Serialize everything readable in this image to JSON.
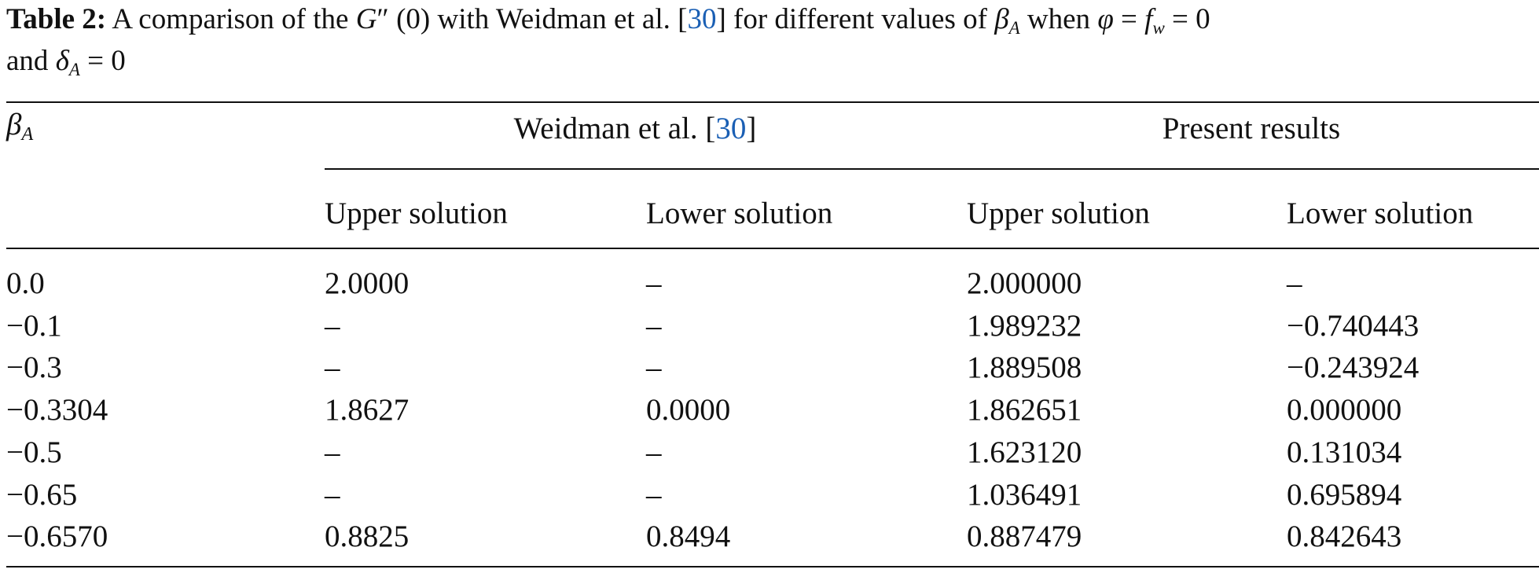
{
  "caption": {
    "label": "Table 2:",
    "parts": [
      "A comparison of the ",
      "G",
      "″",
      " (0) with Weidman et al. [",
      "30",
      "] for different values of ",
      "β",
      "A",
      " when ",
      "φ",
      " = ",
      "f",
      "w",
      " = 0",
      "and ",
      "δ",
      "A",
      " = 0"
    ]
  },
  "table": {
    "corner": {
      "symbol": "β",
      "sub": "A"
    },
    "groups": [
      {
        "parts": [
          "Weidman et al. [",
          "30",
          "]"
        ]
      },
      {
        "parts": [
          "Present results"
        ]
      }
    ],
    "subheaders": [
      "Upper solution",
      "Lower solution",
      "Upper solution",
      "Lower solution"
    ],
    "rows": [
      [
        "0.0",
        "2.0000",
        "–",
        "2.000000",
        "–"
      ],
      [
        "−0.1",
        "–",
        "–",
        "1.989232",
        "−0.740443"
      ],
      [
        "−0.3",
        "–",
        "–",
        "1.889508",
        "−0.243924"
      ],
      [
        "−0.3304",
        "1.8627",
        "0.0000",
        "1.862651",
        "0.000000"
      ],
      [
        "−0.5",
        "–",
        "–",
        "1.623120",
        "0.131034"
      ],
      [
        "−0.65",
        "–",
        "–",
        "1.036491",
        "0.695894"
      ],
      [
        "−0.6570",
        "0.8825",
        "0.8494",
        "0.887479",
        "0.842643"
      ]
    ]
  }
}
